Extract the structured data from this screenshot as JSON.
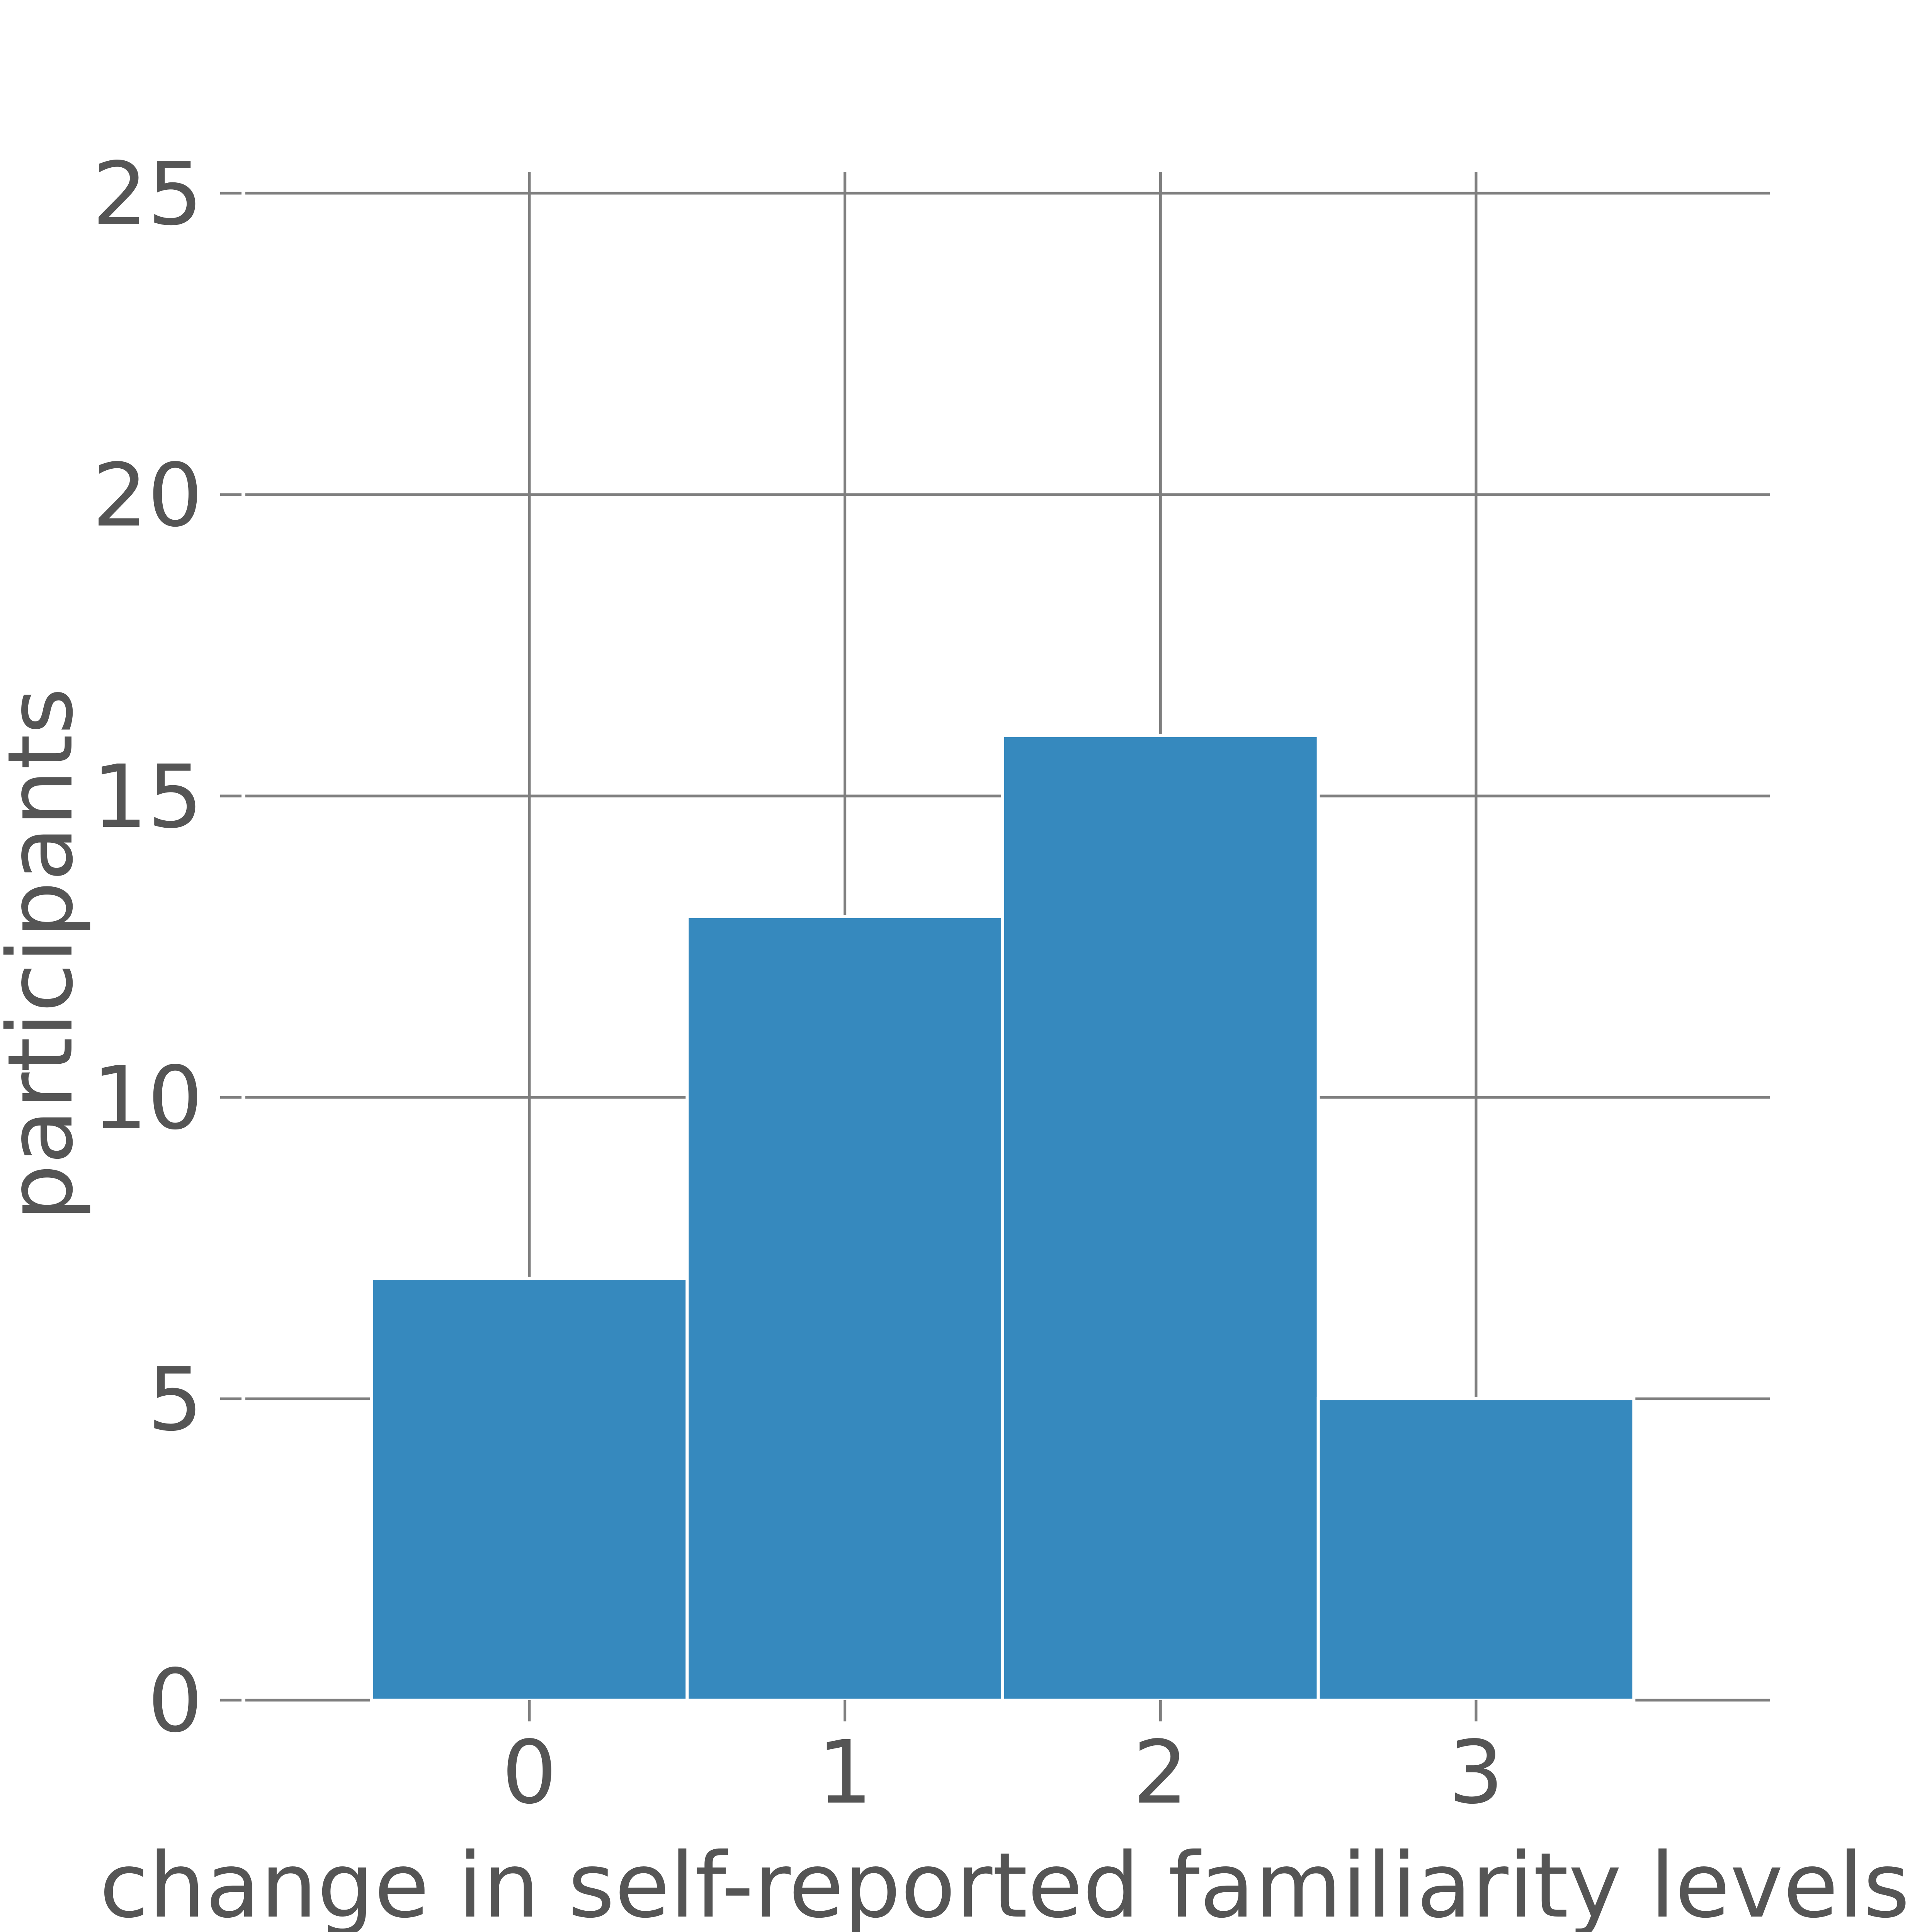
{
  "chart_data": {
    "type": "bar",
    "categories": [
      "0",
      "1",
      "2",
      "3"
    ],
    "values": [
      7,
      13,
      16,
      5
    ],
    "xlabel": "change in self-reported familiarity levels",
    "ylabel": "participants",
    "ylim": [
      0,
      25
    ],
    "yticks": [
      "0",
      "5",
      "10",
      "15",
      "20",
      "25"
    ],
    "grid": true,
    "bar_color": "#3689be",
    "bar_edge_color": "#ffffff",
    "grid_color": "#7f7f7f",
    "text_color": "#555555"
  }
}
